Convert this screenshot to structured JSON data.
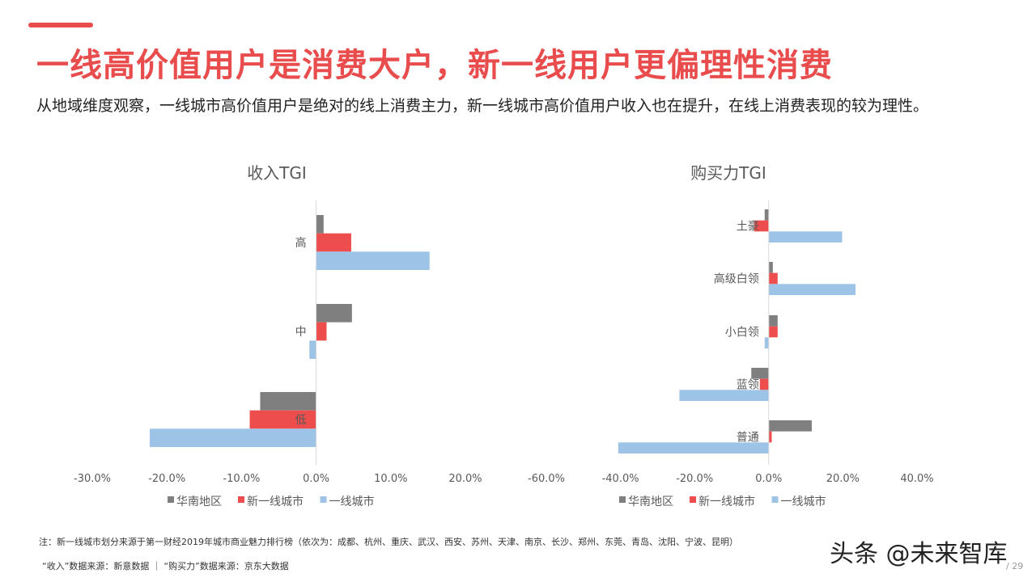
{
  "header": {
    "title": "一线高价值用户是消费大户，新一线用户更偏理性消费",
    "subtitle": "从地域维度观察，一线城市高价值用户是绝对的线上消费主力，新一线城市高价值用户收入也在提升，在线上消费表现的较为理性。"
  },
  "colors": {
    "accent": "#e94c4c",
    "华南地区": "#7f7f7f",
    "新一线城市": "#ee4d4d",
    "一线城市": "#9dc3e6"
  },
  "chart_data": [
    {
      "type": "bar",
      "orientation": "horizontal",
      "title": "收入TGI",
      "categories": [
        "高",
        "中",
        "低"
      ],
      "xlim": [
        -30,
        20
      ],
      "xticks": [
        "-30.0%",
        "-20.0%",
        "-10.0%",
        "0.0%",
        "10.0%",
        "20.0%"
      ],
      "tick_values": [
        -30,
        -20,
        -10,
        0,
        10,
        20
      ],
      "legend_position": "bottom",
      "series": [
        {
          "name": "华南地区",
          "values": [
            1.0,
            4.8,
            -7.5
          ]
        },
        {
          "name": "新一线城市",
          "values": [
            4.7,
            1.4,
            -8.9
          ]
        },
        {
          "name": "一线城市",
          "values": [
            15.2,
            -0.9,
            -22.3
          ]
        }
      ]
    },
    {
      "type": "bar",
      "orientation": "horizontal",
      "title": "购买力TGI",
      "categories": [
        "土豪",
        "高级白领",
        "小白领",
        "蓝领",
        "普通"
      ],
      "xlim": [
        -60,
        40
      ],
      "xticks": [
        "-60.0%",
        "-40.0%",
        "-20.0%",
        "0.0%",
        "20.0%",
        "40.0%"
      ],
      "tick_values": [
        -60,
        -40,
        -20,
        0,
        20,
        40
      ],
      "legend_position": "bottom",
      "series": [
        {
          "name": "华南地区",
          "values": [
            -1.1,
            1.1,
            2.4,
            -4.7,
            11.6
          ]
        },
        {
          "name": "新一线城市",
          "values": [
            -3.9,
            2.4,
            2.4,
            -2.4,
            0.8
          ]
        },
        {
          "name": "一线城市",
          "values": [
            19.8,
            23.4,
            -1.1,
            -24.1,
            -40.6
          ]
        }
      ]
    }
  ],
  "footer": {
    "note": "注：新一线城市划分来源于第一财经2019年城市商业魅力排行榜（依次为：成都、杭州、重庆、武汉、西安、苏州、天津、南京、长沙、郑州、东莞、青岛、沈阳、宁波、昆明）",
    "source": "“收入”数据来源：新意数据  ｜  “购买力”数据来源：京东大数据",
    "watermark": "头条 @未来智库",
    "page": "/ 29"
  }
}
